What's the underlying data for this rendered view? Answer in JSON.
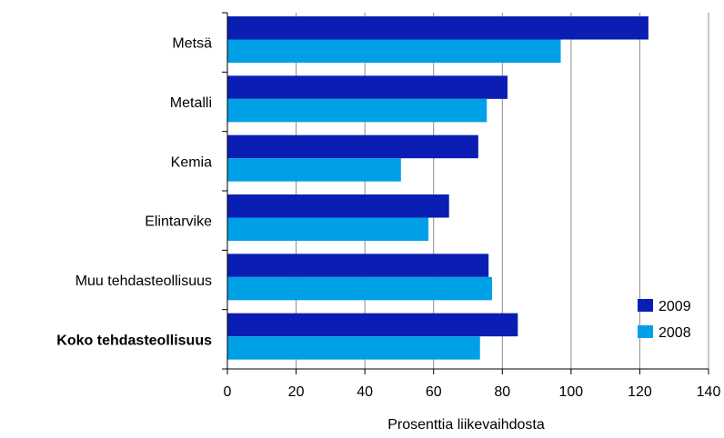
{
  "chart_data": {
    "type": "bar",
    "orientation": "horizontal",
    "categories": [
      "Metsä",
      "Metalli",
      "Kemia",
      "Elintarvike",
      "Muu tehdasteollisuus",
      "Koko tehdasteollisuus"
    ],
    "bold_categories": [
      "Koko tehdasteollisuus"
    ],
    "series": [
      {
        "name": "2009",
        "color": "#0a1eb4",
        "values": [
          122.5,
          81.5,
          73,
          64.5,
          76,
          84.5
        ]
      },
      {
        "name": "2008",
        "color": "#00a0e6",
        "values": [
          97,
          75.5,
          50.5,
          58.5,
          77,
          73.5
        ]
      }
    ],
    "xlabel": "Prosenttia liikevaihdosta",
    "xlim": [
      0,
      140
    ],
    "xticks": [
      "0",
      "20",
      "40",
      "60",
      "80",
      "100",
      "120",
      "140"
    ],
    "grid": "vertical",
    "legend_position": "bottom-right"
  }
}
